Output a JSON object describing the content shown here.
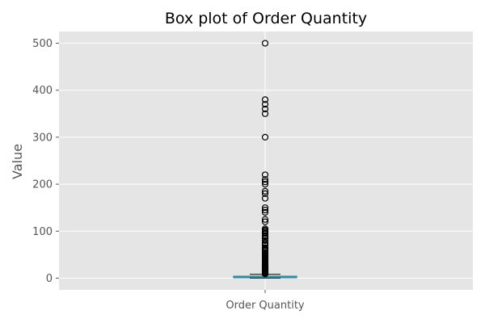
{
  "chart_data": {
    "type": "box",
    "title": "Box plot of Order Quantity",
    "xlabel": "",
    "ylabel": "Value",
    "categories": [
      "Order Quantity"
    ],
    "ylim": [
      -25,
      525
    ],
    "yticks": [
      0,
      100,
      200,
      300,
      400,
      500
    ],
    "grid": true,
    "box": {
      "min": 0,
      "q1": 1,
      "median": 2,
      "q3": 4,
      "whisker_low": 0,
      "whisker_high": 8,
      "outliers": [
        9,
        10,
        11,
        12,
        13,
        14,
        15,
        16,
        17,
        18,
        19,
        20,
        21,
        22,
        23,
        24,
        25,
        26,
        27,
        28,
        30,
        32,
        34,
        36,
        38,
        40,
        42,
        44,
        46,
        48,
        50,
        52,
        55,
        58,
        60,
        62,
        65,
        70,
        72,
        75,
        80,
        84,
        88,
        90,
        95,
        97,
        100,
        102,
        105,
        120,
        125,
        140,
        145,
        150,
        170,
        180,
        185,
        200,
        205,
        210,
        220,
        300,
        350,
        360,
        370,
        380,
        500
      ]
    },
    "colors": {
      "plot_background": "#e5e5e5",
      "grid": "#ffffff",
      "box": "#1f77b4",
      "median": "#2ca02c",
      "outlier_edge": "#000000"
    }
  }
}
